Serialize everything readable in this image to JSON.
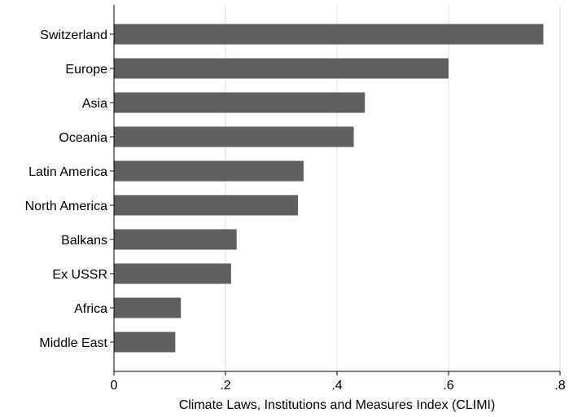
{
  "chart_data": {
    "type": "bar",
    "orientation": "horizontal",
    "categories": [
      "Switzerland",
      "Europe",
      "Asia",
      "Oceania",
      "Latin America",
      "North America",
      "Balkans",
      "Ex USSR",
      "Africa",
      "Middle East"
    ],
    "values": [
      0.77,
      0.6,
      0.45,
      0.43,
      0.34,
      0.33,
      0.22,
      0.21,
      0.12,
      0.11
    ],
    "xlabel": "Climate Laws, Institutions and Measures Index (CLIMI)",
    "ylabel": "",
    "xlim": [
      0,
      0.8
    ],
    "xticks": [
      0,
      0.2,
      0.4,
      0.6,
      0.8
    ],
    "xtick_labels": [
      "0",
      ".2",
      ".4",
      ".6",
      ".8"
    ],
    "grid": "vertical",
    "bar_color": "#5f5f5f",
    "grid_color": "#dcdcdc"
  }
}
